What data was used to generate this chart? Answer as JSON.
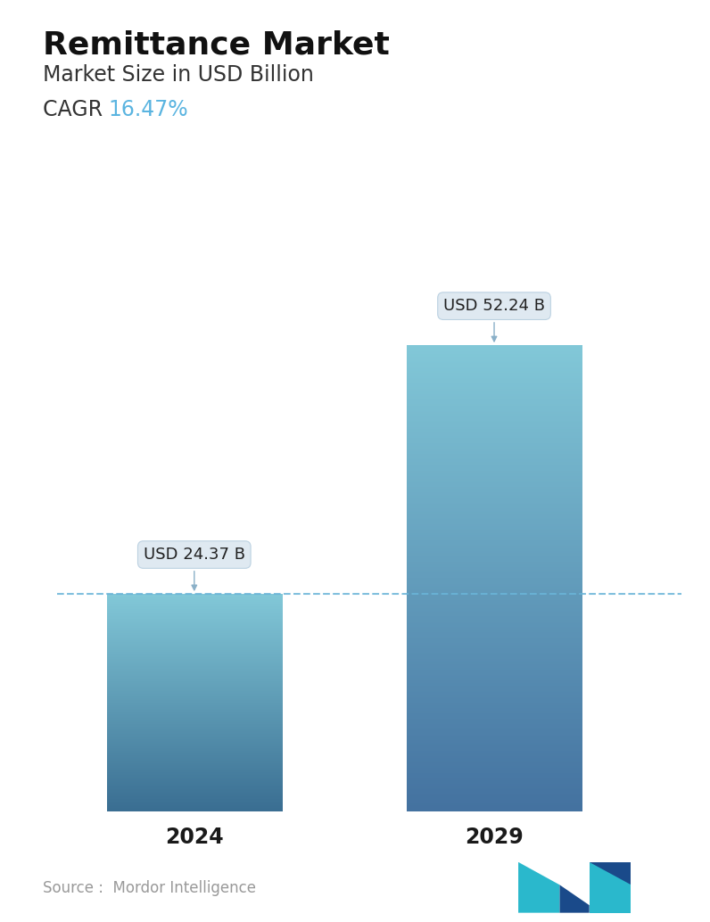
{
  "title": "Remittance Market",
  "subtitle": "Market Size in USD Billion",
  "cagr_label": "CAGR  ",
  "cagr_value": "16.47%",
  "cagr_color": "#5ab4e0",
  "categories": [
    "2024",
    "2029"
  ],
  "values": [
    24.37,
    52.24
  ],
  "bar_labels": [
    "USD 24.37 B",
    "USD 52.24 B"
  ],
  "bar_top_2024": "#82c8d8",
  "bar_bot_2024": "#3a6e92",
  "bar_top_2029": "#82c8d8",
  "bar_bot_2029": "#4472a0",
  "dashed_line_color": "#6ab4d8",
  "source_text": "Source :  Mordor Intelligence",
  "source_color": "#999999",
  "background_color": "#ffffff",
  "title_fontsize": 26,
  "subtitle_fontsize": 17,
  "cagr_fontsize": 17,
  "xlabel_fontsize": 17,
  "annotation_fontsize": 13,
  "ylim": [
    0,
    62
  ]
}
